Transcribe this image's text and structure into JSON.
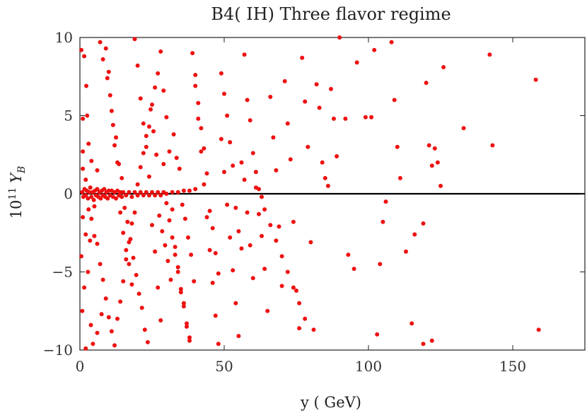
{
  "chart_data": {
    "type": "scatter",
    "title": "B4( IH) Three flavor regime",
    "xlabel": "y ( GeV)",
    "ylabel_base": "10",
    "ylabel_exp": "11",
    "ylabel_var": "Y",
    "ylabel_sub": "B",
    "xlim": [
      0,
      175
    ],
    "ylim": [
      -10,
      10
    ],
    "xticks": [
      0,
      50,
      100,
      150
    ],
    "yticks": [
      -10,
      -5,
      0,
      5,
      10
    ],
    "xtick_labels": [
      "0",
      "50",
      "100",
      "150"
    ],
    "ytick_labels": [
      "−10",
      "−5",
      "0",
      "5",
      "10"
    ],
    "grid": false,
    "zero_line": true,
    "point_color": "#ee1111",
    "points": [
      [
        0.8,
        0.1
      ],
      [
        1.2,
        -0.2
      ],
      [
        1.6,
        0.3
      ],
      [
        2.0,
        -0.1
      ],
      [
        2.4,
        0.2
      ],
      [
        2.8,
        -0.3
      ],
      [
        3.2,
        0.1
      ],
      [
        3.6,
        0.4
      ],
      [
        4.0,
        -0.2
      ],
      [
        4.4,
        0.1
      ],
      [
        4.8,
        -0.4
      ],
      [
        5.2,
        0.2
      ],
      [
        5.6,
        -0.1
      ],
      [
        6.0,
        0.3
      ],
      [
        6.4,
        -0.2
      ],
      [
        6.8,
        0.1
      ],
      [
        7.2,
        -0.3
      ],
      [
        7.6,
        0.2
      ],
      [
        8.0,
        -0.1
      ],
      [
        8.4,
        0.3
      ],
      [
        8.8,
        -0.2
      ],
      [
        9.2,
        0.1
      ],
      [
        9.6,
        -0.3
      ],
      [
        10.0,
        0.2
      ],
      [
        10.5,
        -0.1
      ],
      [
        11.0,
        0.2
      ],
      [
        11.5,
        -0.2
      ],
      [
        12.0,
        0.1
      ],
      [
        12.5,
        -0.3
      ],
      [
        13.0,
        0.2
      ],
      [
        13.5,
        -0.1
      ],
      [
        14.0,
        0.1
      ],
      [
        14.5,
        -0.2
      ],
      [
        15.0,
        0.1
      ],
      [
        16.0,
        -0.1
      ],
      [
        17.0,
        0.1
      ],
      [
        18.0,
        -0.2
      ],
      [
        19.0,
        0.1
      ],
      [
        20.0,
        -0.1
      ],
      [
        21.0,
        0.1
      ],
      [
        22.0,
        -0.1
      ],
      [
        23.0,
        0.1
      ],
      [
        24.0,
        -0.1
      ],
      [
        25.0,
        0.1
      ],
      [
        26.0,
        -0.1
      ],
      [
        27.0,
        0.1
      ],
      [
        28.0,
        -0.1
      ],
      [
        29.0,
        0.1
      ],
      [
        30.0,
        0.0
      ],
      [
        32.0,
        0.1
      ],
      [
        34.0,
        0.1
      ],
      [
        36.0,
        0.2
      ],
      [
        38.0,
        0.2
      ],
      [
        40.0,
        0.3
      ],
      [
        0.5,
        9.2
      ],
      [
        1.5,
        8.8
      ],
      [
        2.2,
        6.9
      ],
      [
        3.0,
        3.2
      ],
      [
        2.5,
        5.0
      ],
      [
        4.0,
        2.1
      ],
      [
        5.0,
        -0.8
      ],
      [
        6.0,
        1.5
      ],
      [
        1.0,
        -1.5
      ],
      [
        2.0,
        -2.6
      ],
      [
        3.5,
        -3.0
      ],
      [
        0.5,
        -4.0
      ],
      [
        2.8,
        -5.0
      ],
      [
        1.5,
        -6.0
      ],
      [
        0.8,
        -7.5
      ],
      [
        2.0,
        -9.9
      ],
      [
        3.8,
        -8.4
      ],
      [
        4.5,
        -9.6
      ],
      [
        6.0,
        -8.9
      ],
      [
        7.5,
        -7.7
      ],
      [
        9.0,
        9.3
      ],
      [
        10.0,
        7.8
      ],
      [
        11.0,
        5.3
      ],
      [
        12.0,
        3.1
      ],
      [
        13.0,
        2.0
      ],
      [
        14.0,
        -1.2
      ],
      [
        15.0,
        -2.5
      ],
      [
        16.0,
        -3.6
      ],
      [
        17.0,
        -4.5
      ],
      [
        18.0,
        -5.8
      ],
      [
        19.0,
        9.9
      ],
      [
        20.0,
        8.2
      ],
      [
        21.0,
        6.1
      ],
      [
        22.0,
        4.5
      ],
      [
        23.0,
        3.0
      ],
      [
        24.0,
        1.1
      ],
      [
        25.0,
        -2.0
      ],
      [
        26.0,
        -3.7
      ],
      [
        27.0,
        -6.0
      ],
      [
        28.0,
        -8.1
      ],
      [
        29.0,
        6.6
      ],
      [
        30.0,
        4.9
      ],
      [
        31.0,
        2.7
      ],
      [
        32.0,
        -1.0
      ],
      [
        33.0,
        -3.4
      ],
      [
        34.0,
        -4.7
      ],
      [
        35.0,
        -6.3
      ],
      [
        36.0,
        -7.0
      ],
      [
        37.0,
        -8.5
      ],
      [
        38.0,
        -9.2
      ],
      [
        7.0,
        9.7
      ],
      [
        8.0,
        8.6
      ],
      [
        9.5,
        7.4
      ],
      [
        10.5,
        6.3
      ],
      [
        11.5,
        4.4
      ],
      [
        12.5,
        3.6
      ],
      [
        13.5,
        1.9
      ],
      [
        14.5,
        1.0
      ],
      [
        15.5,
        -0.9
      ],
      [
        16.5,
        -1.8
      ],
      [
        17.5,
        -2.9
      ],
      [
        18.5,
        -4.1
      ],
      [
        19.5,
        -5.2
      ],
      [
        20.5,
        -6.4
      ],
      [
        21.5,
        -7.3
      ],
      [
        22.5,
        -8.7
      ],
      [
        23.5,
        -9.5
      ],
      [
        24.5,
        5.4
      ],
      [
        25.5,
        4.0
      ],
      [
        26.5,
        2.5
      ],
      [
        27.5,
        -1.4
      ],
      [
        28.5,
        -2.4
      ],
      [
        29.5,
        -3.3
      ],
      [
        30.5,
        -4.3
      ],
      [
        31.5,
        -5.5
      ],
      [
        32.5,
        3.8
      ],
      [
        33.5,
        2.3
      ],
      [
        34.5,
        1.6
      ],
      [
        35.5,
        -0.7
      ],
      [
        36.5,
        -1.6
      ],
      [
        37.5,
        -2.8
      ],
      [
        38.5,
        -3.9
      ],
      [
        39.5,
        -5.6
      ],
      [
        40.0,
        7.6
      ],
      [
        41.0,
        5.8
      ],
      [
        42.0,
        4.2
      ],
      [
        43.0,
        2.9
      ],
      [
        44.0,
        1.3
      ],
      [
        45.0,
        -1.1
      ],
      [
        46.0,
        -2.2
      ],
      [
        47.0,
        -3.8
      ],
      [
        48.0,
        -5.1
      ],
      [
        49.0,
        7.7
      ],
      [
        50.0,
        6.4
      ],
      [
        51.0,
        5.0
      ],
      [
        52.0,
        3.3
      ],
      [
        53.0,
        1.8
      ],
      [
        54.0,
        -0.9
      ],
      [
        55.0,
        -2.4
      ],
      [
        56.0,
        -3.5
      ],
      [
        57.0,
        8.9
      ],
      [
        58.0,
        6.0
      ],
      [
        59.0,
        4.7
      ],
      [
        60.0,
        2.6
      ],
      [
        61.0,
        1.4
      ],
      [
        62.0,
        -1.3
      ],
      [
        63.0,
        -2.7
      ],
      [
        64.0,
        -4.8
      ],
      [
        65.0,
        -7.5
      ],
      [
        66.0,
        6.2
      ],
      [
        67.0,
        3.6
      ],
      [
        68.0,
        1.5
      ],
      [
        69.0,
        -2.1
      ],
      [
        70.0,
        -5.9
      ],
      [
        71.0,
        7.2
      ],
      [
        72.0,
        4.5
      ],
      [
        73.0,
        2.2
      ],
      [
        74.0,
        -1.8
      ],
      [
        75.0,
        -6.2
      ],
      [
        76.0,
        -8.6
      ],
      [
        77.0,
        8.7
      ],
      [
        78.0,
        5.9
      ],
      [
        79.0,
        3.0
      ],
      [
        80.0,
        -3.1
      ],
      [
        81.0,
        -8.7
      ],
      [
        82.0,
        7.0
      ],
      [
        83.0,
        5.5
      ],
      [
        84.0,
        2.0
      ],
      [
        85.0,
        1.0
      ],
      [
        86.0,
        0.5
      ],
      [
        87.0,
        6.7
      ],
      [
        88.0,
        4.8
      ],
      [
        89.0,
        2.4
      ],
      [
        90.0,
        10.0
      ],
      [
        92.0,
        4.8
      ],
      [
        93.0,
        -3.9
      ],
      [
        95.0,
        -4.8
      ],
      [
        96.0,
        8.4
      ],
      [
        99.0,
        4.9
      ],
      [
        101.0,
        4.9
      ],
      [
        102.0,
        9.2
      ],
      [
        103.0,
        -9.0
      ],
      [
        104.0,
        -4.5
      ],
      [
        105.0,
        -1.8
      ],
      [
        106.0,
        -0.5
      ],
      [
        108.0,
        9.7
      ],
      [
        109.0,
        6.0
      ],
      [
        110.0,
        3.0
      ],
      [
        111.0,
        1.0
      ],
      [
        113.0,
        -3.7
      ],
      [
        115.0,
        -8.3
      ],
      [
        116.0,
        -2.6
      ],
      [
        119.0,
        -1.9
      ],
      [
        120.0,
        7.1
      ],
      [
        121.0,
        3.1
      ],
      [
        122.0,
        1.8
      ],
      [
        123.0,
        2.9
      ],
      [
        124.0,
        2.0
      ],
      [
        125.0,
        0.5
      ],
      [
        126.0,
        8.1
      ],
      [
        133.0,
        4.2
      ],
      [
        142.0,
        8.9
      ],
      [
        143.0,
        3.1
      ],
      [
        158.0,
        7.3
      ],
      [
        159.0,
        -8.7
      ],
      [
        119.0,
        -9.6
      ],
      [
        122.0,
        -9.4
      ],
      [
        1.0,
        4.8
      ],
      [
        1.0,
        2.7
      ],
      [
        1.0,
        1.6
      ],
      [
        2.0,
        0.9
      ],
      [
        3.0,
        -1.0
      ],
      [
        4.0,
        -1.6
      ],
      [
        5.0,
        -2.7
      ],
      [
        6.0,
        -3.2
      ],
      [
        7.0,
        -4.5
      ],
      [
        8.0,
        -5.5
      ],
      [
        9.0,
        -6.7
      ],
      [
        10.0,
        -7.9
      ],
      [
        11.0,
        -8.8
      ],
      [
        12.0,
        -9.7
      ],
      [
        13.0,
        -8.0
      ],
      [
        14.0,
        -6.9
      ],
      [
        15.0,
        -5.6
      ],
      [
        16.0,
        -4.2
      ],
      [
        17.0,
        -3.1
      ],
      [
        18.0,
        -1.9
      ],
      [
        19.0,
        -1.2
      ],
      [
        20.0,
        0.6
      ],
      [
        21.0,
        1.7
      ],
      [
        22.0,
        2.6
      ],
      [
        23.0,
        3.7
      ],
      [
        24.0,
        4.3
      ],
      [
        25.0,
        5.7
      ],
      [
        26.0,
        6.8
      ],
      [
        27.0,
        7.7
      ],
      [
        28.0,
        9.1
      ],
      [
        29.0,
        1.9
      ],
      [
        30.0,
        -0.6
      ],
      [
        31.0,
        -1.7
      ],
      [
        32.0,
        -2.8
      ],
      [
        33.0,
        -3.9
      ],
      [
        34.0,
        -5.0
      ],
      [
        35.0,
        -6.1
      ],
      [
        36.0,
        -7.2
      ],
      [
        37.0,
        -8.3
      ],
      [
        38.0,
        -9.4
      ],
      [
        39.0,
        9.0
      ],
      [
        40.0,
        6.9
      ],
      [
        41.0,
        4.8
      ],
      [
        42.0,
        2.7
      ],
      [
        43.0,
        0.6
      ],
      [
        44.0,
        -1.5
      ],
      [
        45.0,
        -3.6
      ],
      [
        46.0,
        -5.7
      ],
      [
        47.0,
        -7.8
      ],
      [
        48.0,
        -9.6
      ],
      [
        49.0,
        3.5
      ],
      [
        50.0,
        1.4
      ],
      [
        51.0,
        -0.7
      ],
      [
        52.0,
        -2.8
      ],
      [
        53.0,
        -4.9
      ],
      [
        54.0,
        -7.0
      ],
      [
        55.0,
        -9.1
      ],
      [
        56.0,
        2.0
      ],
      [
        57.0,
        0.9
      ],
      [
        58.0,
        -1.2
      ],
      [
        59.0,
        -3.3
      ],
      [
        60.0,
        -5.4
      ],
      [
        61.0,
        0.4
      ],
      [
        62.0,
        0.3
      ],
      [
        63.0,
        -0.2
      ],
      [
        64.0,
        -1.0
      ],
      [
        66.0,
        -2.0
      ],
      [
        68.0,
        -3.0
      ],
      [
        70.0,
        -4.0
      ],
      [
        72.0,
        -5.0
      ],
      [
        74.0,
        -6.0
      ],
      [
        76.0,
        -7.0
      ],
      [
        78.0,
        -8.0
      ]
    ]
  }
}
